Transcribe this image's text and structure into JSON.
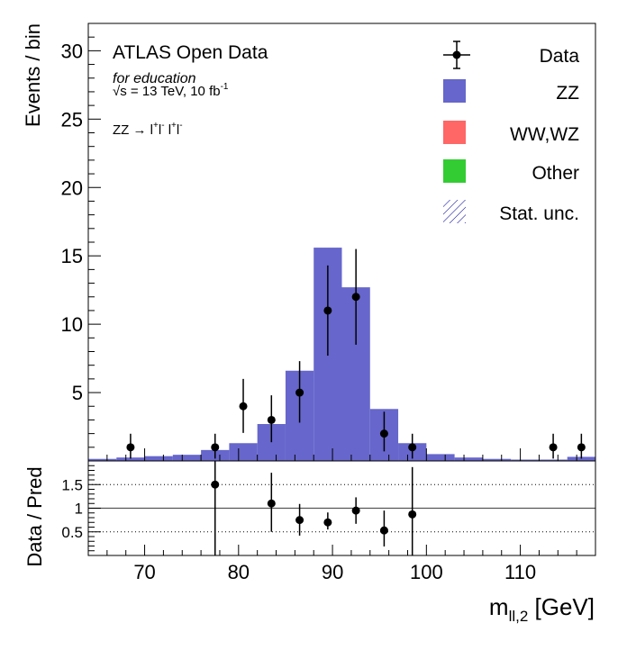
{
  "chart_data": {
    "type": "bar",
    "stacked_histogram": true,
    "bin_edges": [
      64,
      67,
      70,
      73,
      76,
      79,
      82,
      85,
      88,
      91,
      94,
      97,
      100,
      103,
      106,
      109,
      112,
      115,
      118
    ],
    "series": [
      {
        "name": "ZZ",
        "color": "#6666cc",
        "values": [
          0.15,
          0.25,
          0.35,
          0.45,
          0.8,
          1.3,
          2.7,
          6.6,
          15.6,
          12.7,
          3.8,
          1.3,
          0.5,
          0.25,
          0.15,
          0.1,
          0.1,
          0.3
        ]
      },
      {
        "name": "WW,WZ",
        "color": "#ff6666",
        "values": [
          0,
          0,
          0,
          0,
          0,
          0,
          0,
          0,
          0,
          0,
          0,
          0,
          0,
          0,
          0,
          0,
          0,
          0
        ]
      },
      {
        "name": "Other",
        "color": "#33cc33",
        "values": [
          0,
          0,
          0,
          0,
          0,
          0,
          0,
          0,
          0,
          0,
          0,
          0,
          0,
          0,
          0,
          0,
          0,
          0
        ]
      }
    ],
    "data_points": [
      {
        "x": 68.5,
        "y": 1,
        "err_low": 0.83,
        "err_high": 0.99
      },
      {
        "x": 77.5,
        "y": 1,
        "err_low": 0.83,
        "err_high": 0.99
      },
      {
        "x": 80.5,
        "y": 4,
        "err_low": 1.95,
        "err_high": 2.0
      },
      {
        "x": 83.5,
        "y": 3,
        "err_low": 1.63,
        "err_high": 1.8
      },
      {
        "x": 86.5,
        "y": 5,
        "err_low": 2.2,
        "err_high": 2.3
      },
      {
        "x": 89.5,
        "y": 11,
        "err_low": 3.3,
        "err_high": 3.3
      },
      {
        "x": 92.5,
        "y": 12,
        "err_low": 3.5,
        "err_high": 3.5
      },
      {
        "x": 95.5,
        "y": 2,
        "err_low": 1.3,
        "err_high": 1.6
      },
      {
        "x": 98.5,
        "y": 1,
        "err_low": 0.83,
        "err_high": 0.99
      },
      {
        "x": 113.5,
        "y": 1,
        "err_low": 0.83,
        "err_high": 0.99
      },
      {
        "x": 116.5,
        "y": 1,
        "err_low": 0.83,
        "err_high": 0.99
      }
    ],
    "ratio_points": [
      {
        "x": 77.5,
        "y": 1.5,
        "err_low": 1.5,
        "err_high": 2.0
      },
      {
        "x": 83.5,
        "y": 1.1,
        "err_low": 0.6,
        "err_high": 0.65
      },
      {
        "x": 86.5,
        "y": 0.75,
        "err_low": 0.33,
        "err_high": 0.34
      },
      {
        "x": 89.5,
        "y": 0.7,
        "err_low": 0.15,
        "err_high": 0.21
      },
      {
        "x": 92.5,
        "y": 0.95,
        "err_low": 0.28,
        "err_high": 0.28
      },
      {
        "x": 95.5,
        "y": 0.53,
        "err_low": 0.34,
        "err_high": 0.42
      },
      {
        "x": 98.5,
        "y": 0.87,
        "err_low": 0.87,
        "err_high": 1.0
      }
    ],
    "xlim": [
      64,
      118
    ],
    "ylim": [
      0,
      32
    ],
    "ratio_ylim": [
      0,
      2
    ],
    "xticks": [
      70,
      80,
      90,
      100,
      110
    ],
    "yticks": [
      5,
      10,
      15,
      20,
      25,
      30
    ],
    "ratio_yticks": [
      0.5,
      1,
      1.5
    ],
    "ylabel": "Events / bin",
    "ratio_ylabel": "Data / Pred",
    "xlabel_main": "m",
    "xlabel_sub": "ll,2",
    "xlabel_unit": " [GeV]",
    "legend_position": "top-right",
    "legend": [
      {
        "label": "Data",
        "kind": "marker"
      },
      {
        "label": "ZZ",
        "kind": "box",
        "color": "#6666cc"
      },
      {
        "label": "WW,WZ",
        "kind": "box",
        "color": "#ff6666"
      },
      {
        "label": "Other",
        "kind": "box",
        "color": "#33cc33"
      },
      {
        "label": "Stat. unc.",
        "kind": "hatch",
        "color": "#000099"
      }
    ],
    "annotations": {
      "title": "ATLAS Open Data",
      "education": "for education",
      "energy": "√s = 13 TeV, 10 fb",
      "energy_sup": "-1",
      "process_prefix": "ZZ → l",
      "process_sup1": "+",
      "process_mid1": "l",
      "process_sup2": "-",
      "process_mid2": " l",
      "process_sup3": "+",
      "process_mid3": "l",
      "process_sup4": "-"
    }
  }
}
